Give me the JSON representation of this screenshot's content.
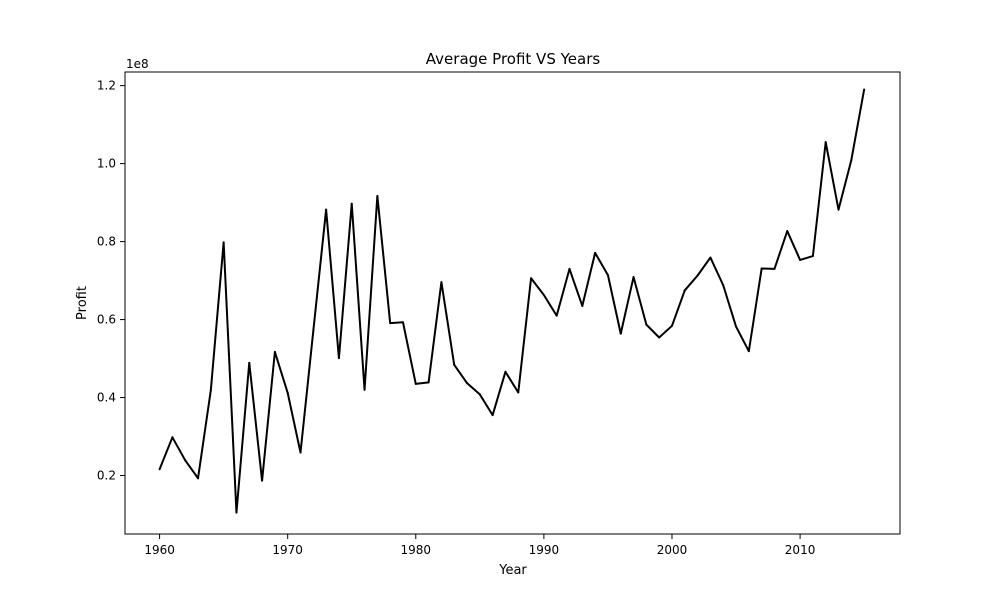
{
  "chart_data": {
    "type": "line",
    "title": "Average Profit VS Years",
    "xlabel": "Year",
    "ylabel": "Profit",
    "y_scale_label": "1e8",
    "xlim": [
      1957.3,
      2017.8
    ],
    "ylim": [
      5000000,
      123500000
    ],
    "xticks": [
      1960,
      1970,
      1980,
      1990,
      2000,
      2010
    ],
    "xtick_labels": [
      "1960",
      "1970",
      "1980",
      "1990",
      "2000",
      "2010"
    ],
    "yticks": [
      20000000,
      40000000,
      60000000,
      80000000,
      100000000,
      120000000
    ],
    "ytick_labels": [
      "0.2",
      "0.4",
      "0.6",
      "0.8",
      "1.0",
      "1.2"
    ],
    "grid": false,
    "line_color": "#000000",
    "x": [
      1960,
      1961,
      1962,
      1963,
      1964,
      1965,
      1966,
      1967,
      1968,
      1969,
      1970,
      1971,
      1972,
      1973,
      1974,
      1975,
      1976,
      1977,
      1978,
      1979,
      1980,
      1981,
      1982,
      1983,
      1984,
      1985,
      1986,
      1987,
      1988,
      1989,
      1990,
      1991,
      1992,
      1993,
      1994,
      1995,
      1996,
      1997,
      1998,
      1999,
      2000,
      2001,
      2002,
      2003,
      2004,
      2005,
      2006,
      2007,
      2008,
      2009,
      2010,
      2011,
      2012,
      2013,
      2014,
      2015
    ],
    "series": [
      {
        "values": [
          21600000,
          29800000,
          23900000,
          19300000,
          41900000,
          79800000,
          10500000,
          48900000,
          18700000,
          51700000,
          41200000,
          25900000,
          57100000,
          88200000,
          50100000,
          89700000,
          42000000,
          91700000,
          59100000,
          59300000,
          43500000,
          43900000,
          69600000,
          48400000,
          43700000,
          40800000,
          35500000,
          46600000,
          41300000,
          70600000,
          66300000,
          61000000,
          73000000,
          63500000,
          77100000,
          71400000,
          56400000,
          70900000,
          58700000,
          55400000,
          58400000,
          67500000,
          71300000,
          75900000,
          68800000,
          58200000,
          51900000,
          73100000,
          73000000,
          82700000,
          75300000,
          76300000,
          105500000,
          88200000,
          100900000,
          119000000
        ]
      }
    ]
  }
}
